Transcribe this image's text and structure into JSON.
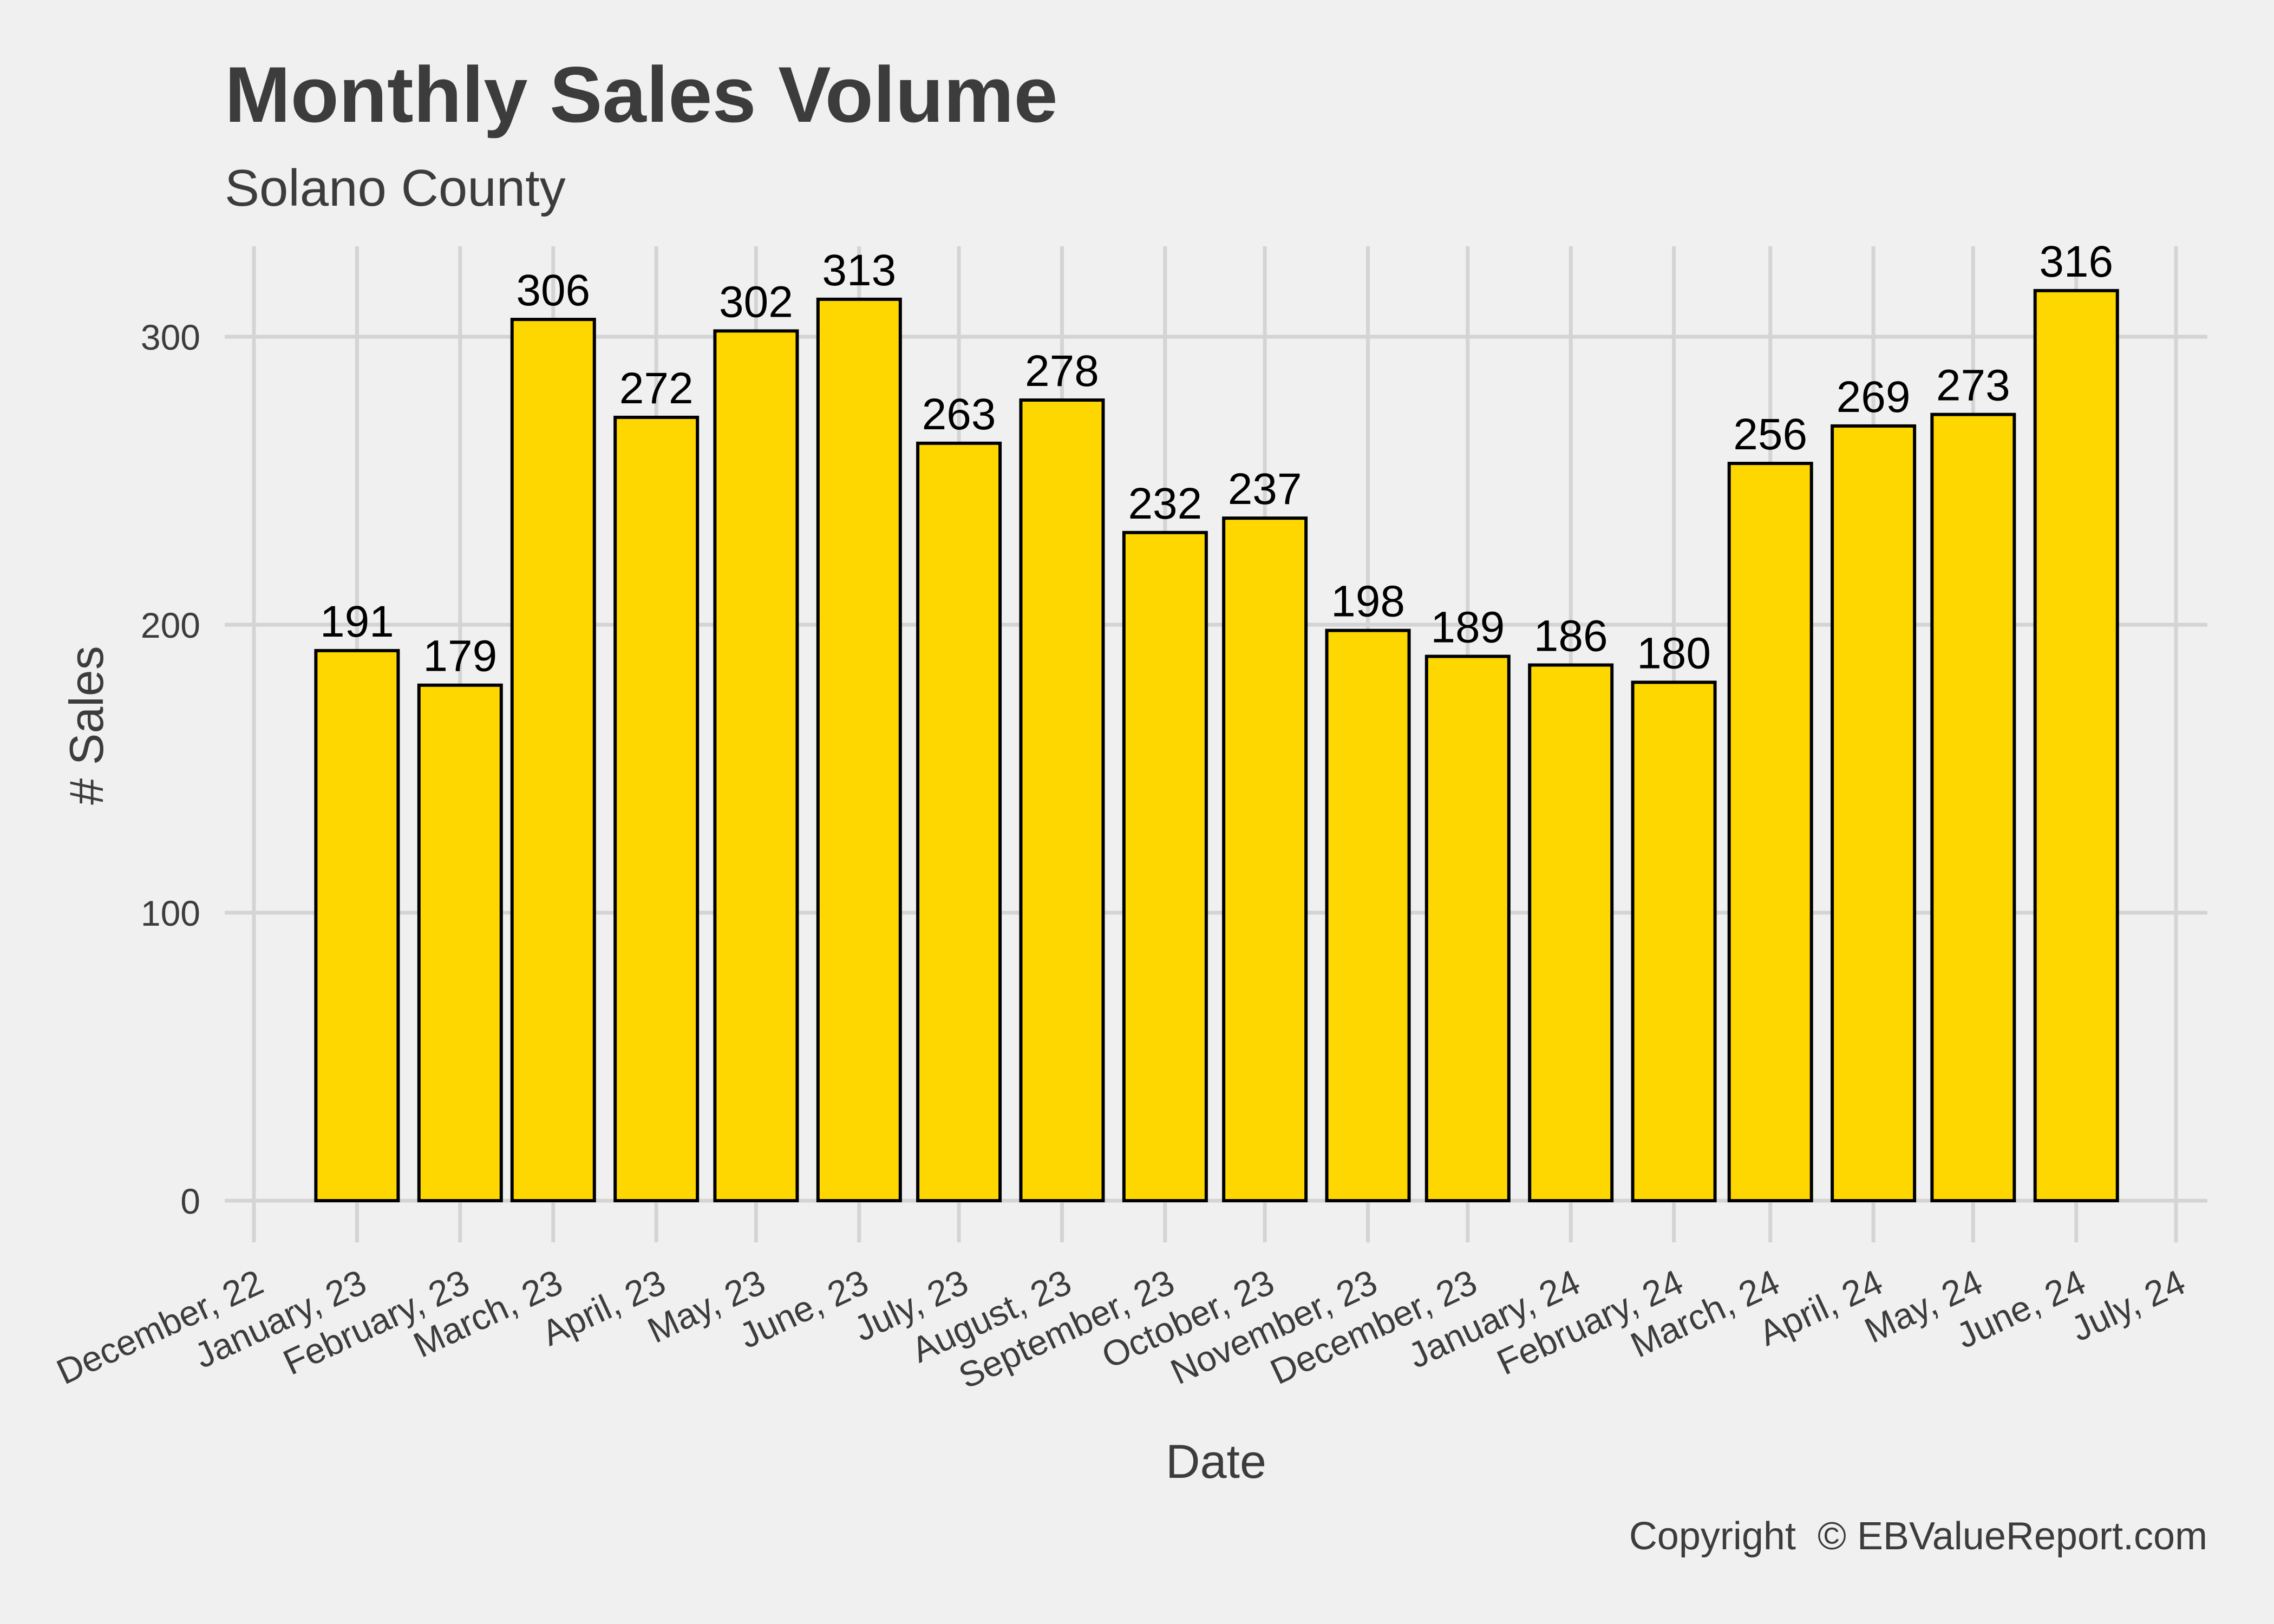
{
  "chart_data": {
    "type": "bar",
    "title": "Monthly Sales Volume",
    "subtitle": "Solano County",
    "xlabel": "Date",
    "ylabel": "# Sales",
    "caption": "Copyright  © EBValueReport.com",
    "categories": [
      "January, 23",
      "February, 23",
      "March, 23",
      "April, 23",
      "May, 23",
      "June, 23",
      "July, 23",
      "August, 23",
      "September, 23",
      "October, 23",
      "November, 23",
      "December, 23",
      "January, 24",
      "February, 24",
      "March, 24",
      "April, 24",
      "May, 24",
      "June, 24"
    ],
    "values": [
      191,
      179,
      306,
      272,
      302,
      313,
      263,
      278,
      232,
      237,
      198,
      189,
      186,
      180,
      256,
      269,
      273,
      316
    ],
    "x_tick_labels": [
      "December, 22",
      "January, 23",
      "February, 23",
      "March, 23",
      "April, 23",
      "May, 23",
      "June, 23",
      "July, 23",
      "August, 23",
      "September, 23",
      "October, 23",
      "November, 23",
      "December, 23",
      "January, 24",
      "February, 24",
      "March, 24",
      "April, 24",
      "May, 24",
      "June, 24",
      "July, 24"
    ],
    "y_ticks": [
      0,
      100,
      200,
      300
    ],
    "ylim": [
      0,
      316
    ],
    "grid": true,
    "legend": "none",
    "colors": {
      "bar_fill": "#FFD700",
      "bar_stroke": "#000000",
      "background": "#f0f0f0",
      "grid": "#d4d4d4",
      "text": "#3c3c3c"
    }
  }
}
